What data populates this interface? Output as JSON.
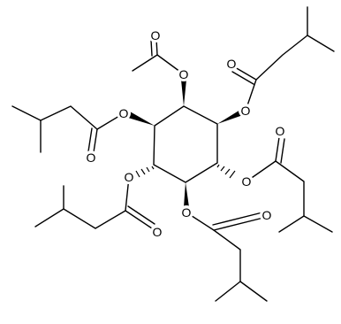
{
  "atoms": [
    {
      "label": "O"
    },
    {
      "label": "O"
    },
    {
      "label": "O"
    },
    {
      "label": "O"
    },
    {
      "label": "O"
    },
    {
      "label": "O"
    },
    {
      "label": "O"
    },
    {
      "label": "O"
    },
    {
      "label": "O"
    },
    {
      "label": "O"
    },
    {
      "label": "O"
    },
    {
      "label": "O"
    }
  ]
}
